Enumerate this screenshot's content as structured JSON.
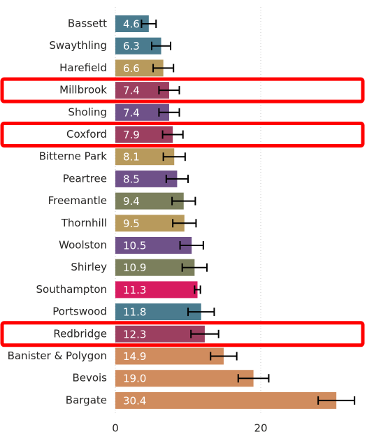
{
  "chart_data": {
    "type": "barh",
    "categories": [
      "Bassett",
      "Swaythling",
      "Harefield",
      "Millbrook",
      "Sholing",
      "Coxford",
      "Bitterne Park",
      "Peartree",
      "Freemantle",
      "Thornhill",
      "Woolston",
      "Shirley",
      "Southampton",
      "Portswood",
      "Redbridge",
      "Banister & Polygon",
      "Bevois",
      "Bargate"
    ],
    "values": [
      4.6,
      6.3,
      6.6,
      7.4,
      7.4,
      7.9,
      8.1,
      8.5,
      9.4,
      9.5,
      10.5,
      10.9,
      11.3,
      11.8,
      12.3,
      14.9,
      19.0,
      30.4
    ],
    "value_labels": [
      "4.6",
      "6.3",
      "6.6",
      "7.4",
      "7.4",
      "7.9",
      "8.1",
      "8.5",
      "9.4",
      "9.5",
      "10.5",
      "10.9",
      "11.3",
      "11.8",
      "12.3",
      "14.9",
      "19.0",
      "30.4"
    ],
    "errors": [
      1.0,
      1.3,
      1.4,
      1.4,
      1.4,
      1.4,
      1.5,
      1.5,
      1.6,
      1.6,
      1.6,
      1.7,
      0.4,
      1.8,
      1.9,
      1.8,
      2.1,
      2.5
    ],
    "colors": [
      "#4a7b8e",
      "#4a7b8e",
      "#b89a5c",
      "#9c3f60",
      "#6f5189",
      "#9c3f60",
      "#b89a5c",
      "#6f5189",
      "#7b7f5c",
      "#b89a5c",
      "#6f5189",
      "#7b7f5c",
      "#d81b60",
      "#4a7b8e",
      "#9c3f60",
      "#d08c5e",
      "#d08c5e",
      "#d08c5e"
    ],
    "highlight": [
      3,
      5,
      14
    ],
    "highlight_color": "#ff0000",
    "xlim": [
      0,
      34
    ],
    "xticks": [
      0,
      20
    ],
    "grid": true
  }
}
